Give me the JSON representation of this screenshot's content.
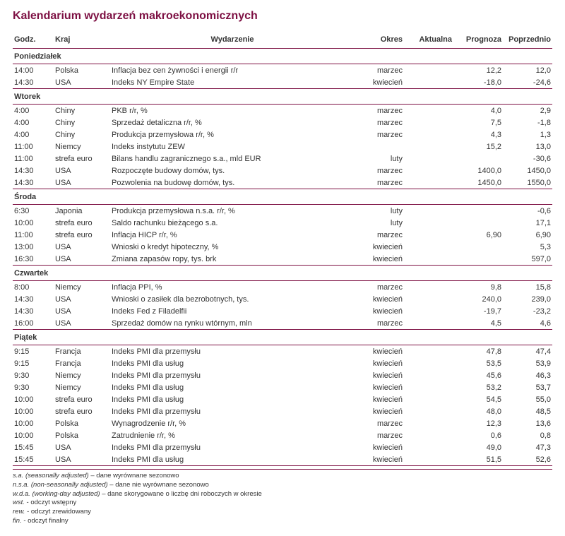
{
  "colors": {
    "title": "#7d1043",
    "rule": "#7d1043",
    "thin_rule": "#7d1043",
    "text": "#333333",
    "bg": "#ffffff"
  },
  "title": "Kalendarium wydarzeń makroekonomicznych",
  "headers": {
    "godz": "Godz.",
    "kraj": "Kraj",
    "event": "Wydarzenie",
    "okres": "Okres",
    "aktualna": "Aktualna",
    "prognoza": "Prognoza",
    "poprzednio": "Poprzednio"
  },
  "days": [
    {
      "name": "Poniedziałek",
      "rows": [
        {
          "godz": "14:00",
          "kraj": "Polska",
          "event": "Inflacja bez cen żywności i energii r/r",
          "okres": "marzec",
          "akt": "",
          "prog": "12,2",
          "pop": "12,0"
        },
        {
          "godz": "14:30",
          "kraj": "USA",
          "event": "Indeks NY Empire State",
          "okres": "kwiecień",
          "akt": "",
          "prog": "-18,0",
          "pop": "-24,6"
        }
      ]
    },
    {
      "name": "Wtorek",
      "rows": [
        {
          "godz": "4:00",
          "kraj": "Chiny",
          "event": "PKB r/r, %",
          "okres": "marzec",
          "akt": "",
          "prog": "4,0",
          "pop": "2,9"
        },
        {
          "godz": "4:00",
          "kraj": "Chiny",
          "event": "Sprzedaż detaliczna r/r, %",
          "okres": "marzec",
          "akt": "",
          "prog": "7,5",
          "pop": "-1,8"
        },
        {
          "godz": "4:00",
          "kraj": "Chiny",
          "event": "Produkcja przemysłowa r/r, %",
          "okres": "marzec",
          "akt": "",
          "prog": "4,3",
          "pop": "1,3"
        },
        {
          "godz": "11:00",
          "kraj": "Niemcy",
          "event": "Indeks instytutu ZEW",
          "okres": "",
          "akt": "",
          "prog": "15,2",
          "pop": "13,0"
        },
        {
          "godz": "11:00",
          "kraj": "strefa euro",
          "event": "Bilans handlu zagranicznego s.a., mld EUR",
          "okres": "luty",
          "akt": "",
          "prog": "",
          "pop": "-30,6"
        },
        {
          "godz": "14:30",
          "kraj": "USA",
          "event": "Rozpoczęte budowy domów, tys.",
          "okres": "marzec",
          "akt": "",
          "prog": "1400,0",
          "pop": "1450,0"
        },
        {
          "godz": "14:30",
          "kraj": "USA",
          "event": "Pozwolenia na budowę domów, tys.",
          "okres": "marzec",
          "akt": "",
          "prog": "1450,0",
          "pop": "1550,0"
        }
      ]
    },
    {
      "name": "Środa",
      "rows": [
        {
          "godz": "6:30",
          "kraj": "Japonia",
          "event": "Produkcja przemysłowa n.s.a. r/r, %",
          "okres": "luty",
          "akt": "",
          "prog": "",
          "pop": "-0,6"
        },
        {
          "godz": "10:00",
          "kraj": "strefa euro",
          "event": "Saldo rachunku bieżącego s.a.",
          "okres": "luty",
          "akt": "",
          "prog": "",
          "pop": "17,1"
        },
        {
          "godz": "11:00",
          "kraj": "strefa euro",
          "event": "Inflacja HICP r/r, %",
          "okres": "marzec",
          "akt": "",
          "prog": "6,90",
          "pop": "6,90"
        },
        {
          "godz": "13:00",
          "kraj": "USA",
          "event": "Wnioski o kredyt hipoteczny, %",
          "okres": "kwiecień",
          "akt": "",
          "prog": "",
          "pop": "5,3"
        },
        {
          "godz": "16:30",
          "kraj": "USA",
          "event": "Zmiana zapasów ropy, tys. brk",
          "okres": "kwiecień",
          "akt": "",
          "prog": "",
          "pop": "597,0"
        }
      ]
    },
    {
      "name": "Czwartek",
      "rows": [
        {
          "godz": "8:00",
          "kraj": "Niemcy",
          "event": "Inflacja PPI, %",
          "okres": "marzec",
          "akt": "",
          "prog": "9,8",
          "pop": "15,8"
        },
        {
          "godz": "14:30",
          "kraj": "USA",
          "event": "Wnioski o zasiłek dla bezrobotnych, tys.",
          "okres": "kwiecień",
          "akt": "",
          "prog": "240,0",
          "pop": "239,0"
        },
        {
          "godz": "14:30",
          "kraj": "USA",
          "event": "Indeks Fed z Filadelfii",
          "okres": "kwiecień",
          "akt": "",
          "prog": "-19,7",
          "pop": "-23,2"
        },
        {
          "godz": "16:00",
          "kraj": "USA",
          "event": "Sprzedaż domów na rynku wtórnym, mln",
          "okres": "marzec",
          "akt": "",
          "prog": "4,5",
          "pop": "4,6"
        }
      ]
    },
    {
      "name": "Piątek",
      "rows": [
        {
          "godz": "9:15",
          "kraj": "Francja",
          "event": "Indeks PMI dla przemysłu",
          "okres": "kwiecień",
          "akt": "",
          "prog": "47,8",
          "pop": "47,4"
        },
        {
          "godz": "9:15",
          "kraj": "Francja",
          "event": "Indeks PMI dla usług",
          "okres": "kwiecień",
          "akt": "",
          "prog": "53,5",
          "pop": "53,9"
        },
        {
          "godz": "9:30",
          "kraj": "Niemcy",
          "event": "Indeks PMI dla przemysłu",
          "okres": "kwiecień",
          "akt": "",
          "prog": "45,6",
          "pop": "46,3"
        },
        {
          "godz": "9:30",
          "kraj": "Niemcy",
          "event": "Indeks PMI dla usług",
          "okres": "kwiecień",
          "akt": "",
          "prog": "53,2",
          "pop": "53,7"
        },
        {
          "godz": "10:00",
          "kraj": "strefa euro",
          "event": "Indeks PMI dla usług",
          "okres": "kwiecień",
          "akt": "",
          "prog": "54,5",
          "pop": "55,0"
        },
        {
          "godz": "10:00",
          "kraj": "strefa euro",
          "event": "Indeks PMI dla przemysłu",
          "okres": "kwiecień",
          "akt": "",
          "prog": "48,0",
          "pop": "48,5"
        },
        {
          "godz": "10:00",
          "kraj": "Polska",
          "event": "Wynagrodzenie r/r, %",
          "okres": "marzec",
          "akt": "",
          "prog": "12,3",
          "pop": "13,6"
        },
        {
          "godz": "10:00",
          "kraj": "Polska",
          "event": "Zatrudnienie r/r, %",
          "okres": "marzec",
          "akt": "",
          "prog": "0,6",
          "pop": "0,8"
        },
        {
          "godz": "15:45",
          "kraj": "USA",
          "event": "Indeks PMI dla przemysłu",
          "okres": "kwiecień",
          "akt": "",
          "prog": "49,0",
          "pop": "47,3"
        },
        {
          "godz": "15:45",
          "kraj": "USA",
          "event": "Indeks PMI dla usług",
          "okres": "kwiecień",
          "akt": "",
          "prog": "51,5",
          "pop": "52,6"
        }
      ]
    }
  ],
  "footnotes": [
    {
      "abbr": "s.a. (seasonally adjusted)",
      "desc": " – dane wyrównane sezonowo"
    },
    {
      "abbr": "n.s.a. (non-seasonally adjusted)",
      "desc": " – dane nie wyrównane sezonowo"
    },
    {
      "abbr": "w.d.a. (working-day adjusted)",
      "desc": " – dane skorygowane o liczbę dni roboczych w okresie"
    },
    {
      "abbr": "wst.",
      "desc": " - odczyt wstępny"
    },
    {
      "abbr": "rew.",
      "desc": " - odczyt zrewidowany"
    },
    {
      "abbr": "fin.",
      "desc": " - odczyt finalny"
    }
  ]
}
